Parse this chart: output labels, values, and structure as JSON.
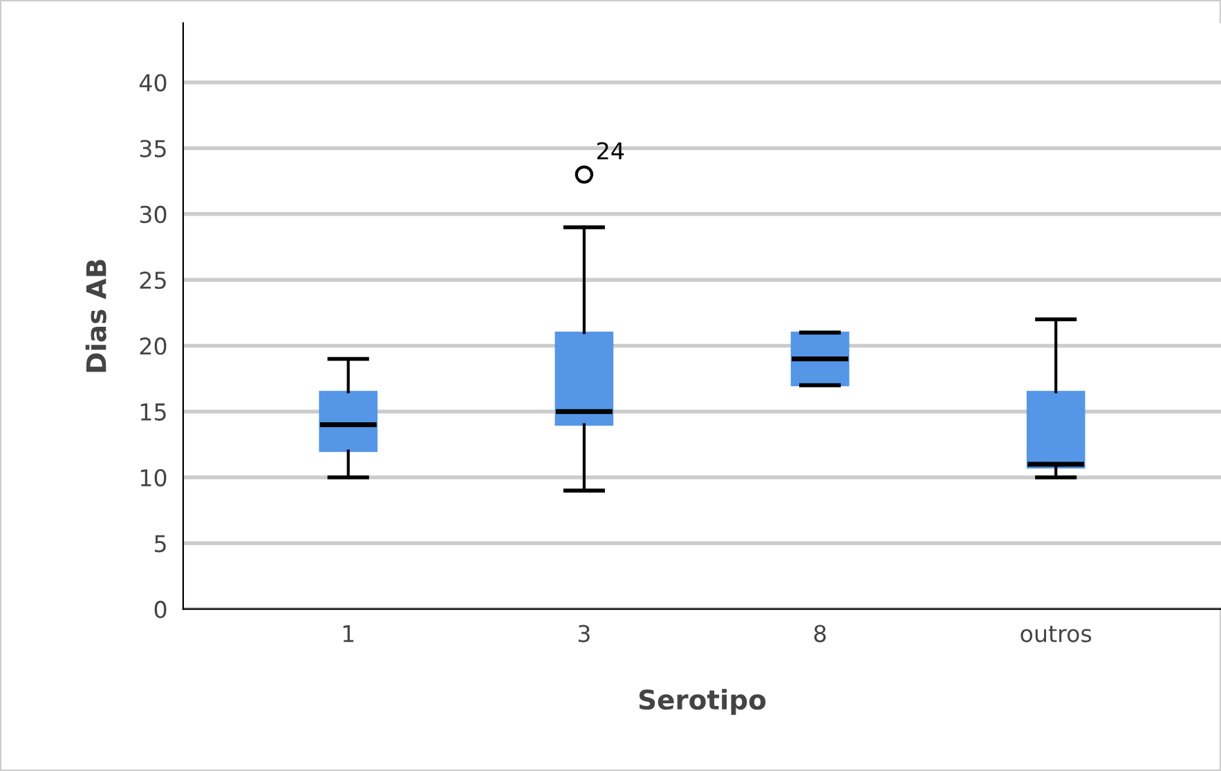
{
  "chart_data": {
    "type": "box",
    "xlabel": "Serotipo",
    "ylabel": "Dias AB",
    "categories": [
      "1",
      "3",
      "8",
      "outros"
    ],
    "color": "#5596e6",
    "boxes": [
      {
        "low": 10,
        "q1": 12,
        "median": 14,
        "q3": 16.5,
        "high": 19
      },
      {
        "low": 9,
        "q1": 14,
        "median": 15,
        "q3": 21,
        "high": 29,
        "outliers": [
          33
        ]
      },
      {
        "low": 17,
        "q1": 17,
        "median": 19,
        "q3": 21,
        "high": 21
      },
      {
        "low": 10,
        "q1": 10.75,
        "median": 11,
        "q3": 16.5,
        "high": 22
      }
    ],
    "annotations": [
      "24"
    ],
    "ylim": [
      0,
      44.5
    ],
    "yticks": [
      0,
      5,
      10,
      15,
      20,
      25,
      30,
      35,
      40
    ],
    "grid": "y"
  }
}
